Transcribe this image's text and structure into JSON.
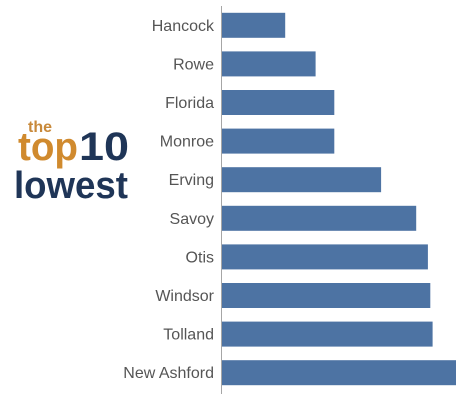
{
  "logo": {
    "line1": "the",
    "line2a": "top",
    "line2b": "10",
    "line3": "lowest"
  },
  "colors": {
    "bar": "#4d73a3",
    "axis": "#a6a6a6",
    "label": "#555555"
  },
  "chart_data": {
    "type": "bar",
    "orientation": "horizontal",
    "title": "",
    "xlabel": "",
    "ylabel": "",
    "categories": [
      "Hancock",
      "Rowe",
      "Florida",
      "Monroe",
      "Erving",
      "Savoy",
      "Otis",
      "Windsor",
      "Tolland",
      "New Ashford"
    ],
    "values": [
      27,
      40,
      48,
      48,
      68,
      83,
      88,
      89,
      90,
      100
    ],
    "xlim": [
      0,
      100
    ],
    "grid": false,
    "legend": "none"
  }
}
